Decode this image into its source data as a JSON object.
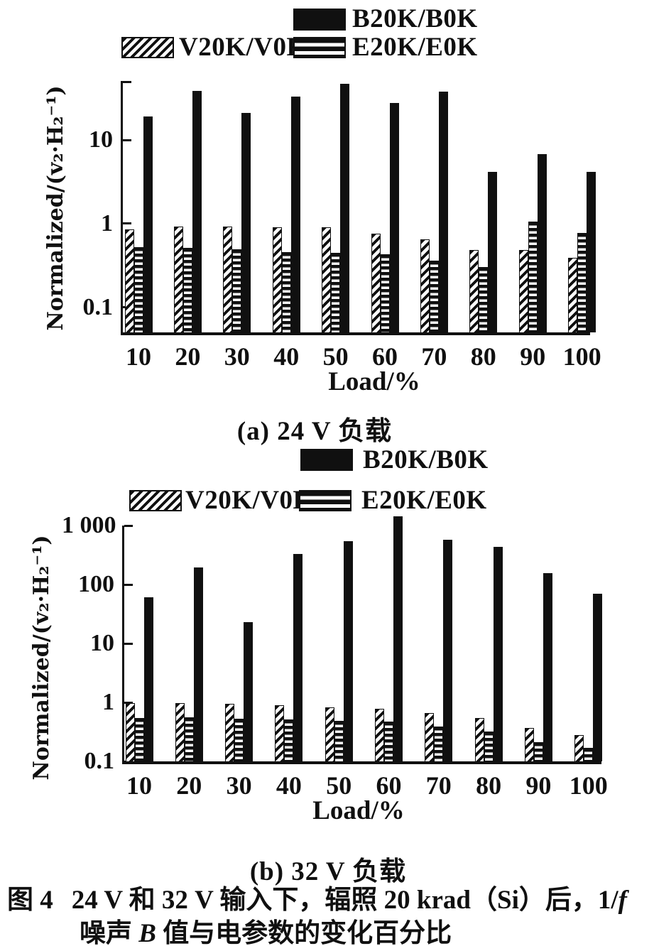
{
  "figure": {
    "label": "图 4",
    "caption_line1": "24 V 和 32 V 输入下，辐照 20 krad（Si）后，1/",
    "caption_line1_italic": "f",
    "caption_line2_pre": "噪声 ",
    "caption_line2_italic": "B",
    "caption_line2_post": " 值与电参数的变化百分比"
  },
  "chart_data": [
    {
      "type": "bar",
      "title": "(a) 24 V 负载",
      "xlabel": "Load/%",
      "ylabel": "Normalized/(v₂·H₂⁻¹)",
      "yscale": "log",
      "ylim": [
        0.05,
        51
      ],
      "yticks": [
        {
          "value": 10,
          "label": "10"
        },
        {
          "value": 1,
          "label": "1"
        },
        {
          "value": 0.1,
          "label": "0.1"
        }
      ],
      "categories": [
        "10",
        "20",
        "30",
        "40",
        "50",
        "60",
        "70",
        "80",
        "90",
        "100"
      ],
      "series": [
        {
          "name": "V20K/V0K",
          "pattern": "diagonal-hatch",
          "values": [
            0.85,
            0.92,
            0.92,
            0.91,
            0.9,
            0.76,
            0.65,
            0.48,
            0.48,
            0.39
          ]
        },
        {
          "name": "E20K/E0K",
          "pattern": "horizontal-stripes",
          "values": [
            0.52,
            0.51,
            0.49,
            0.46,
            0.45,
            0.43,
            0.36,
            0.3,
            1.05,
            0.78
          ]
        },
        {
          "name": "B20K/B0K",
          "pattern": "solid",
          "values": [
            19,
            39,
            21,
            33,
            47,
            28,
            38,
            4.2,
            6.8,
            4.2
          ]
        }
      ],
      "legend_position": "top",
      "grid": false
    },
    {
      "type": "bar",
      "title": "(b) 32 V 负载",
      "xlabel": "Load/%",
      "ylabel": "Normalized/(v₂·H₂⁻¹)",
      "yscale": "log",
      "ylim": [
        0.1,
        1000
      ],
      "yticks": [
        {
          "value": 1000,
          "label": "1 000"
        },
        {
          "value": 100,
          "label": "100"
        },
        {
          "value": 10,
          "label": "10"
        },
        {
          "value": 1,
          "label": "1"
        },
        {
          "value": 0.1,
          "label": "0.1"
        }
      ],
      "categories": [
        "10",
        "20",
        "30",
        "40",
        "50",
        "60",
        "70",
        "80",
        "90",
        "100"
      ],
      "series": [
        {
          "name": "V20K/V0K",
          "pattern": "diagonal-hatch",
          "values": [
            0.98,
            0.98,
            0.95,
            0.9,
            0.82,
            0.78,
            0.66,
            0.55,
            0.37,
            0.28
          ]
        },
        {
          "name": "E20K/E0K",
          "pattern": "horizontal-stripes",
          "values": [
            0.55,
            0.56,
            0.53,
            0.51,
            0.49,
            0.47,
            0.39,
            0.32,
            0.21,
            0.17
          ]
        },
        {
          "name": "B20K/B0K",
          "pattern": "solid",
          "values": [
            60,
            195,
            23,
            330,
            540,
            1450,
            580,
            430,
            155,
            70
          ]
        }
      ],
      "legend_position": "top",
      "grid": false
    }
  ],
  "colors": {
    "ink": "#101010",
    "background": "#ffffff"
  }
}
